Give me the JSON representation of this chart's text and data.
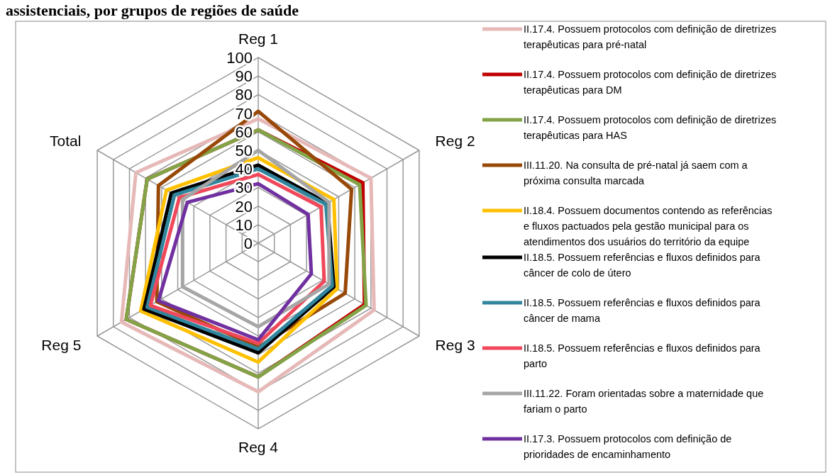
{
  "chart_data": {
    "type": "radar",
    "title": "assistenciais, por grupos de regiões de saúde",
    "categories": [
      "Reg 1",
      "Reg 2",
      "Reg 3",
      "Reg 4",
      "Reg 5",
      "Total"
    ],
    "ylim": [
      0,
      100
    ],
    "yticks": [
      0,
      10,
      20,
      30,
      40,
      50,
      60,
      70,
      80,
      90,
      100
    ],
    "grid": true,
    "legend": "right",
    "marker": "none",
    "series": [
      {
        "name": "II.17.4. Possuem protocolos com definição de diretrizes terapêuticas para pré-natal",
        "color": "#e6b9b8",
        "values": [
          67,
          70,
          72,
          80,
          85,
          76
        ]
      },
      {
        "name": "II.17.4. Possuem protocolos com definição de diretrizes terapêuticas para DM",
        "color": "#c00000",
        "values": [
          61,
          65,
          66,
          72,
          82,
          69
        ]
      },
      {
        "name": "II.17.4. Possuem protocolos com definição de diretrizes terapêuticas para HAS",
        "color": "#82a447",
        "values": [
          61,
          63,
          67,
          72,
          82,
          69
        ]
      },
      {
        "name": "III.11.20. Na consulta de pré-natal já saem com a próxima consulta marcada",
        "color": "#984807",
        "values": [
          71,
          58,
          54,
          56,
          63,
          62
        ]
      },
      {
        "name": "II.18.4. Possuem documentos contendo as referências e fluxos pactuados pela gestão municipal para os atendimentos dos usuários do território da equipe",
        "color": "#ffc000",
        "values": [
          46,
          47,
          49,
          64,
          73,
          57
        ]
      },
      {
        "name": "II.18.5. Possuem referências e fluxos definidos para câncer de colo de útero",
        "color": "#000000",
        "values": [
          42,
          43,
          47,
          59,
          71,
          54
        ]
      },
      {
        "name": "II.18.5. Possuem referências e fluxos definidos para câncer de mama",
        "color": "#31859c",
        "values": [
          40,
          42,
          46,
          57,
          69,
          52
        ]
      },
      {
        "name": "II.18.5. Possuem referências e fluxos definidos para parto",
        "color": "#f0485a",
        "values": [
          37,
          39,
          41,
          54,
          67,
          49
        ]
      },
      {
        "name": "III.11.22. Foram orientadas sobre a maternidade que fariam o parto",
        "color": "#a6a6a6",
        "values": [
          50,
          44,
          44,
          45,
          47,
          47
        ]
      },
      {
        "name": "II.17.3. Possuem protocolos com definição de prioridades de encaminhamento",
        "color": "#7030a0",
        "values": [
          32,
          31,
          33,
          52,
          62,
          44
        ]
      }
    ]
  }
}
